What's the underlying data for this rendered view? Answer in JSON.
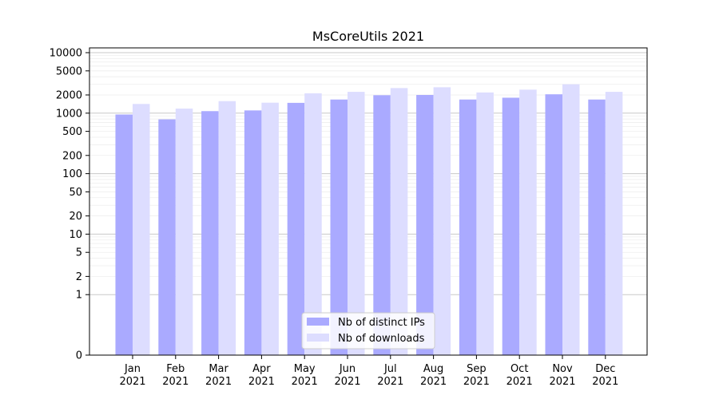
{
  "chart_data": {
    "type": "bar",
    "title": "MsCoreUtils 2021",
    "xlabel": "",
    "ylabel": "",
    "yscale": "symlog",
    "ylim": [
      0,
      12000
    ],
    "yticks": [
      0,
      1,
      2,
      5,
      10,
      20,
      50,
      100,
      200,
      500,
      1000,
      2000,
      5000,
      10000
    ],
    "grid": true,
    "legend_position": "bottom-center",
    "categories": [
      [
        "Jan",
        "2021"
      ],
      [
        "Feb",
        "2021"
      ],
      [
        "Mar",
        "2021"
      ],
      [
        "Apr",
        "2021"
      ],
      [
        "May",
        "2021"
      ],
      [
        "Jun",
        "2021"
      ],
      [
        "Jul",
        "2021"
      ],
      [
        "Aug",
        "2021"
      ],
      [
        "Sep",
        "2021"
      ],
      [
        "Oct",
        "2021"
      ],
      [
        "Nov",
        "2021"
      ],
      [
        "Dec",
        "2021"
      ]
    ],
    "series": [
      {
        "name": "Nb of distinct IPs",
        "color": "#aaaaff",
        "values": [
          950,
          790,
          1080,
          1110,
          1480,
          1680,
          1980,
          2000,
          1680,
          1800,
          2050,
          1680
        ]
      },
      {
        "name": "Nb of downloads",
        "color": "#ddddff",
        "values": [
          1420,
          1190,
          1580,
          1490,
          2130,
          2250,
          2600,
          2680,
          2200,
          2450,
          3000,
          2250
        ]
      }
    ]
  }
}
